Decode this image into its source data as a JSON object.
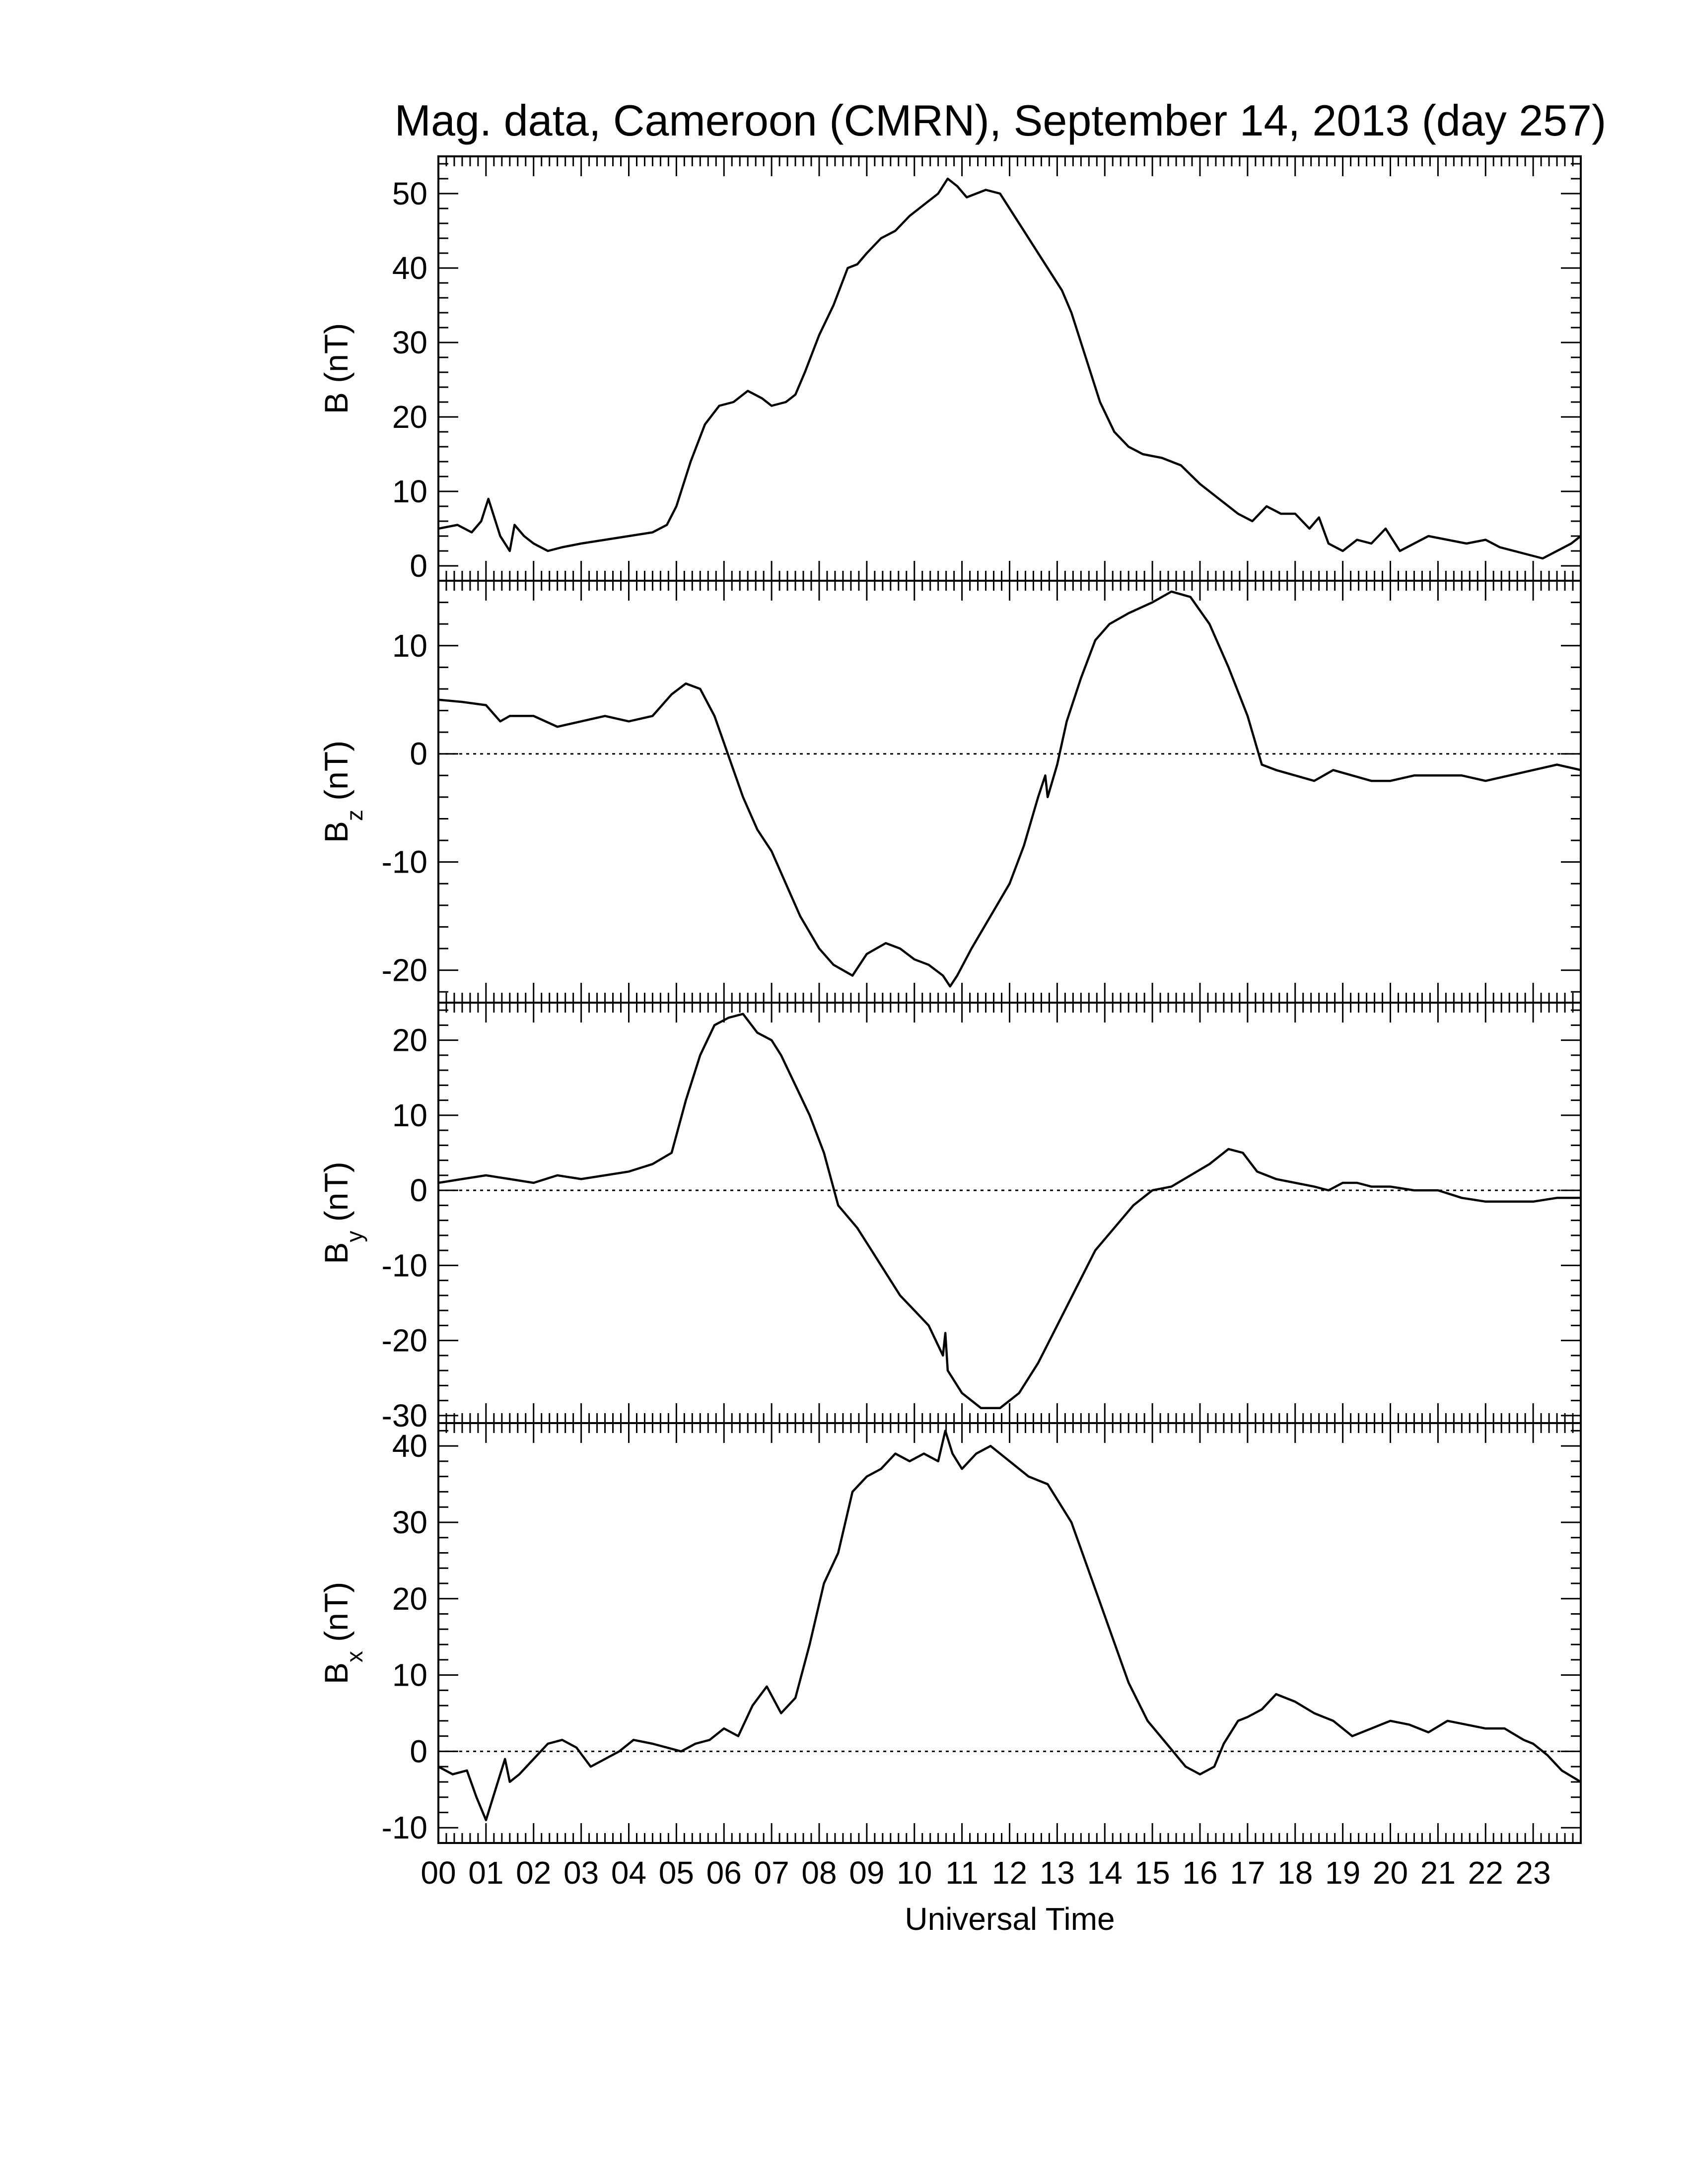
{
  "chart_data": {
    "type": "line",
    "title": "Mag. data, Cameroon (CMRN), September 14, 2013 (day 257)",
    "xlabel": "Universal Time",
    "xlim": [
      0,
      24
    ],
    "x_tick_labels": [
      "00",
      "01",
      "02",
      "03",
      "04",
      "05",
      "06",
      "07",
      "08",
      "09",
      "10",
      "11",
      "12",
      "13",
      "14",
      "15",
      "16",
      "17",
      "18",
      "19",
      "20",
      "21",
      "22",
      "23"
    ],
    "x_ticks_hours": [
      0,
      1,
      2,
      3,
      4,
      5,
      6,
      7,
      8,
      9,
      10,
      11,
      12,
      13,
      14,
      15,
      16,
      17,
      18,
      19,
      20,
      21,
      22,
      23
    ],
    "panels": [
      {
        "id": "B",
        "ylabel_main": "B",
        "ylabel_sub": "",
        "ylabel_unit": " (nT)",
        "ylim": [
          -2,
          55
        ],
        "yticks": [
          0,
          10,
          20,
          30,
          40,
          50
        ],
        "zero_line": false,
        "x": [
          0,
          0.4,
          0.7,
          0.9,
          1.05,
          1.3,
          1.5,
          1.6,
          1.8,
          2.0,
          2.3,
          2.6,
          3.0,
          3.5,
          4.0,
          4.5,
          4.8,
          5.0,
          5.3,
          5.6,
          5.9,
          6.2,
          6.5,
          6.8,
          7.0,
          7.3,
          7.5,
          7.7,
          8.0,
          8.3,
          8.6,
          8.8,
          9.0,
          9.3,
          9.6,
          9.9,
          10.2,
          10.5,
          10.7,
          10.9,
          11.1,
          11.3,
          11.5,
          11.8,
          12.0,
          12.3,
          12.6,
          12.9,
          13.1,
          13.3,
          13.6,
          13.9,
          14.2,
          14.5,
          14.8,
          15.2,
          15.6,
          16.0,
          16.4,
          16.8,
          17.1,
          17.4,
          17.7,
          18.0,
          18.3,
          18.5,
          18.7,
          19.0,
          19.3,
          19.6,
          19.9,
          20.2,
          20.5,
          20.8,
          21.2,
          21.6,
          22.0,
          22.3,
          22.6,
          22.9,
          23.2,
          23.5,
          23.8,
          24.0
        ],
        "y": [
          5,
          5.5,
          4.5,
          6,
          9,
          4,
          2,
          5.5,
          4,
          3,
          2,
          2.5,
          3,
          3.5,
          4,
          4.5,
          5.5,
          8,
          14,
          19,
          21.5,
          22,
          23.5,
          22.5,
          21.5,
          22,
          23,
          26,
          31,
          35,
          40,
          40.5,
          42,
          44,
          45,
          47,
          48.5,
          50,
          52,
          51,
          49.5,
          50,
          50.5,
          50,
          48,
          45,
          42,
          39,
          37,
          34,
          28,
          22,
          18,
          16,
          15,
          14.5,
          13.5,
          11,
          9,
          7,
          6,
          8,
          7,
          7,
          5,
          6.5,
          3,
          2,
          3.5,
          3,
          5,
          2,
          3,
          4,
          3.5,
          3,
          3.5,
          2.5,
          2,
          1.5,
          1,
          2,
          3,
          4
        ]
      },
      {
        "id": "Bz",
        "ylabel_main": "B",
        "ylabel_sub": "z",
        "ylabel_unit": " (nT)",
        "ylim": [
          -23,
          16
        ],
        "yticks": [
          -20,
          -10,
          0,
          10
        ],
        "zero_line": true,
        "x": [
          0,
          0.5,
          1.0,
          1.3,
          1.5,
          2.0,
          2.5,
          3.0,
          3.5,
          4.0,
          4.5,
          4.9,
          5.2,
          5.5,
          5.8,
          6.0,
          6.2,
          6.4,
          6.7,
          7.0,
          7.3,
          7.6,
          8.0,
          8.3,
          8.7,
          9.0,
          9.4,
          9.7,
          10.0,
          10.3,
          10.6,
          10.75,
          10.9,
          11.2,
          11.6,
          12.0,
          12.3,
          12.6,
          12.75,
          12.8,
          13.0,
          13.2,
          13.5,
          13.8,
          14.1,
          14.5,
          15.0,
          15.4,
          15.8,
          16.2,
          16.6,
          17.0,
          17.3,
          17.6,
          18.0,
          18.4,
          18.8,
          19.2,
          19.6,
          20.0,
          20.5,
          21.0,
          21.5,
          22.0,
          22.5,
          23.0,
          23.5,
          24.0
        ],
        "y": [
          5,
          4.8,
          4.5,
          3,
          3.5,
          3.5,
          2.5,
          3,
          3.5,
          3,
          3.5,
          5.5,
          6.5,
          6,
          3.5,
          1,
          -1.5,
          -4,
          -7,
          -9,
          -12,
          -15,
          -18,
          -19.5,
          -20.5,
          -18.5,
          -17.5,
          -18,
          -19,
          -19.5,
          -20.5,
          -21.5,
          -20.5,
          -18,
          -15,
          -12,
          -8.5,
          -4,
          -2,
          -4,
          -1,
          3,
          7,
          10.5,
          12,
          13,
          14,
          15,
          14.5,
          12,
          8,
          3.5,
          -1,
          -1.5,
          -2,
          -2.5,
          -1.5,
          -2,
          -2.5,
          -2.5,
          -2,
          -2,
          -2,
          -2.5,
          -2,
          -1.5,
          -1,
          -1.5
        ]
      },
      {
        "id": "By",
        "ylabel_main": "B",
        "ylabel_sub": "y",
        "ylabel_unit": " (nT)",
        "ylim": [
          -31,
          25
        ],
        "yticks": [
          -30,
          -20,
          -10,
          0,
          10,
          20
        ],
        "zero_line": true,
        "x": [
          0,
          0.5,
          1.0,
          1.5,
          2.0,
          2.5,
          3.0,
          3.5,
          4.0,
          4.5,
          4.9,
          5.2,
          5.5,
          5.8,
          6.1,
          6.4,
          6.7,
          7.0,
          7.2,
          7.5,
          7.8,
          8.1,
          8.4,
          8.8,
          9.1,
          9.4,
          9.7,
          10.0,
          10.3,
          10.6,
          10.65,
          10.7,
          11.0,
          11.4,
          11.8,
          12.2,
          12.6,
          13.0,
          13.4,
          13.8,
          14.2,
          14.6,
          15.0,
          15.4,
          15.8,
          16.2,
          16.6,
          16.9,
          17.2,
          17.6,
          18.0,
          18.4,
          18.7,
          19.0,
          19.3,
          19.6,
          20.0,
          20.5,
          21.0,
          21.5,
          22.0,
          22.5,
          23.0,
          23.5,
          24.0
        ],
        "y": [
          1,
          1.5,
          2,
          1.5,
          1,
          2,
          1.5,
          2,
          2.5,
          3.5,
          5,
          12,
          18,
          22,
          23,
          23.5,
          21,
          20,
          18,
          14,
          10,
          5,
          -2,
          -5,
          -8,
          -11,
          -14,
          -16,
          -18,
          -22,
          -19,
          -24,
          -27,
          -29,
          -29,
          -27,
          -23,
          -18,
          -13,
          -8,
          -5,
          -2,
          0,
          0.5,
          2,
          3.5,
          5.5,
          5,
          2.5,
          1.5,
          1,
          0.5,
          0,
          1,
          1,
          0.5,
          0.5,
          0,
          0,
          -1,
          -1.5,
          -1.5,
          -1.5,
          -1,
          -1
        ]
      },
      {
        "id": "Bx",
        "ylabel_main": "B",
        "ylabel_sub": "x",
        "ylabel_unit": " (nT)",
        "ylim": [
          -12,
          43
        ],
        "yticks": [
          -10,
          0,
          10,
          20,
          30,
          40
        ],
        "zero_line": true,
        "x": [
          0,
          0.3,
          0.6,
          0.8,
          1.0,
          1.2,
          1.4,
          1.5,
          1.7,
          2.0,
          2.3,
          2.6,
          2.9,
          3.2,
          3.5,
          3.8,
          4.1,
          4.5,
          4.8,
          5.1,
          5.4,
          5.7,
          6.0,
          6.3,
          6.6,
          6.9,
          7.2,
          7.5,
          7.8,
          8.1,
          8.4,
          8.7,
          9.0,
          9.3,
          9.6,
          9.9,
          10.2,
          10.5,
          10.65,
          10.8,
          11.0,
          11.3,
          11.6,
          12.0,
          12.4,
          12.8,
          13.0,
          13.3,
          13.7,
          14.1,
          14.5,
          14.9,
          15.3,
          15.7,
          16.0,
          16.3,
          16.5,
          16.8,
          17.0,
          17.3,
          17.6,
          18.0,
          18.4,
          18.8,
          19.2,
          19.6,
          20.0,
          20.4,
          20.8,
          21.2,
          21.6,
          22.0,
          22.4,
          22.8,
          23.0,
          23.3,
          23.6,
          24.0
        ],
        "y": [
          -2,
          -3,
          -2.5,
          -6,
          -9,
          -5,
          -1,
          -4,
          -3,
          -1,
          1,
          1.5,
          0.5,
          -2,
          -1,
          0,
          1.5,
          1,
          0.5,
          0,
          1,
          1.5,
          3,
          2,
          6,
          8.5,
          5,
          7,
          14,
          22,
          26,
          34,
          36,
          37,
          39,
          38,
          39,
          38,
          42,
          39,
          37,
          39,
          40,
          38,
          36,
          35,
          33,
          30,
          23,
          16,
          9,
          4,
          1,
          -2,
          -3,
          -2,
          1,
          4,
          4.5,
          5.5,
          7.5,
          6.5,
          5,
          4,
          2,
          3,
          4,
          3.5,
          2.5,
          4,
          3.5,
          3,
          3,
          1.5,
          1,
          -0.5,
          -2.5,
          -4
        ]
      }
    ]
  }
}
